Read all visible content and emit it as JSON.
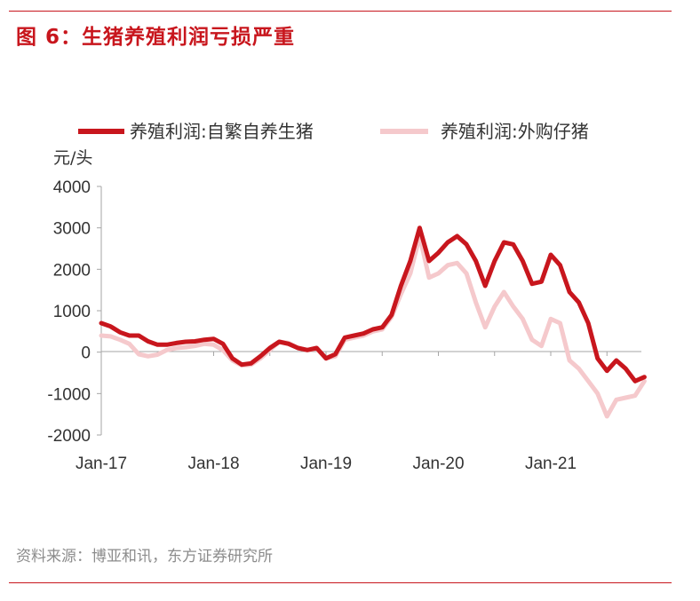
{
  "figure": {
    "title": "图 6：生猪养殖利润亏损严重",
    "source": "资料来源：博亚和讯，东方证券研究所"
  },
  "colors": {
    "accent": "#c8161d",
    "series_own": "#c8161d",
    "series_bought": "#f5c9cc"
  },
  "chart_data": {
    "type": "line",
    "ylabel": "元/头",
    "ylim": [
      -2000,
      4000
    ],
    "yticks": [
      4000,
      3000,
      2000,
      1000,
      0,
      -1000,
      -2000
    ],
    "xticks": [
      "Jan-17",
      "Jan-18",
      "Jan-19",
      "Jan-20",
      "Jan-21"
    ],
    "x_unit_note": "",
    "legend_position": "top",
    "series": [
      {
        "name": "养殖利润:自繁自养生猪",
        "points": [
          [
            "2017-01",
            700
          ],
          [
            "2017-02",
            620
          ],
          [
            "2017-03",
            480
          ],
          [
            "2017-04",
            400
          ],
          [
            "2017-05",
            400
          ],
          [
            "2017-06",
            260
          ],
          [
            "2017-07",
            180
          ],
          [
            "2017-08",
            180
          ],
          [
            "2017-09",
            220
          ],
          [
            "2017-10",
            250
          ],
          [
            "2017-11",
            260
          ],
          [
            "2017-12",
            300
          ],
          [
            "2018-01",
            320
          ],
          [
            "2018-02",
            200
          ],
          [
            "2018-03",
            -150
          ],
          [
            "2018-04",
            -300
          ],
          [
            "2018-05",
            -270
          ],
          [
            "2018-06",
            -100
          ],
          [
            "2018-07",
            100
          ],
          [
            "2018-08",
            250
          ],
          [
            "2018-09",
            200
          ],
          [
            "2018-10",
            100
          ],
          [
            "2018-11",
            50
          ],
          [
            "2018-12",
            100
          ],
          [
            "2019-01",
            -150
          ],
          [
            "2019-02",
            -50
          ],
          [
            "2019-03",
            350
          ],
          [
            "2019-04",
            400
          ],
          [
            "2019-05",
            450
          ],
          [
            "2019-06",
            550
          ],
          [
            "2019-07",
            600
          ],
          [
            "2019-08",
            900
          ],
          [
            "2019-09",
            1600
          ],
          [
            "2019-10",
            2200
          ],
          [
            "2019-11",
            3000
          ],
          [
            "2019-12",
            2200
          ],
          [
            "2020-01",
            2400
          ],
          [
            "2020-02",
            2650
          ],
          [
            "2020-03",
            2800
          ],
          [
            "2020-04",
            2600
          ],
          [
            "2020-05",
            2200
          ],
          [
            "2020-06",
            1600
          ],
          [
            "2020-07",
            2200
          ],
          [
            "2020-08",
            2650
          ],
          [
            "2020-09",
            2600
          ],
          [
            "2020-10",
            2200
          ],
          [
            "2020-11",
            1650
          ],
          [
            "2020-12",
            1700
          ],
          [
            "2021-01",
            2350
          ],
          [
            "2021-02",
            2100
          ],
          [
            "2021-03",
            1450
          ],
          [
            "2021-04",
            1200
          ],
          [
            "2021-05",
            700
          ],
          [
            "2021-06",
            -150
          ],
          [
            "2021-07",
            -450
          ],
          [
            "2021-08",
            -200
          ],
          [
            "2021-09",
            -400
          ],
          [
            "2021-10",
            -700
          ],
          [
            "2021-11",
            -600
          ]
        ]
      },
      {
        "name": "养殖利润:外购仔猪",
        "points": [
          [
            "2017-01",
            400
          ],
          [
            "2017-02",
            380
          ],
          [
            "2017-03",
            300
          ],
          [
            "2017-04",
            200
          ],
          [
            "2017-05",
            -50
          ],
          [
            "2017-06",
            -100
          ],
          [
            "2017-07",
            -60
          ],
          [
            "2017-08",
            50
          ],
          [
            "2017-09",
            100
          ],
          [
            "2017-10",
            120
          ],
          [
            "2017-11",
            150
          ],
          [
            "2017-12",
            200
          ],
          [
            "2018-01",
            180
          ],
          [
            "2018-02",
            50
          ],
          [
            "2018-03",
            -200
          ],
          [
            "2018-04",
            -320
          ],
          [
            "2018-05",
            -300
          ],
          [
            "2018-06",
            -150
          ],
          [
            "2018-07",
            50
          ],
          [
            "2018-08",
            250
          ],
          [
            "2018-09",
            220
          ],
          [
            "2018-10",
            100
          ],
          [
            "2018-11",
            50
          ],
          [
            "2018-12",
            80
          ],
          [
            "2019-01",
            -150
          ],
          [
            "2019-02",
            -100
          ],
          [
            "2019-03",
            300
          ],
          [
            "2019-04",
            350
          ],
          [
            "2019-05",
            400
          ],
          [
            "2019-06",
            500
          ],
          [
            "2019-07",
            550
          ],
          [
            "2019-08",
            850
          ],
          [
            "2019-09",
            1400
          ],
          [
            "2019-10",
            1900
          ],
          [
            "2019-11",
            2800
          ],
          [
            "2019-12",
            1800
          ],
          [
            "2020-01",
            1900
          ],
          [
            "2020-02",
            2100
          ],
          [
            "2020-03",
            2150
          ],
          [
            "2020-04",
            1900
          ],
          [
            "2020-05",
            1200
          ],
          [
            "2020-06",
            600
          ],
          [
            "2020-07",
            1100
          ],
          [
            "2020-08",
            1450
          ],
          [
            "2020-09",
            1100
          ],
          [
            "2020-10",
            800
          ],
          [
            "2020-11",
            300
          ],
          [
            "2020-12",
            150
          ],
          [
            "2021-01",
            800
          ],
          [
            "2021-02",
            700
          ],
          [
            "2021-03",
            -200
          ],
          [
            "2021-04",
            -400
          ],
          [
            "2021-05",
            -700
          ],
          [
            "2021-06",
            -1000
          ],
          [
            "2021-07",
            -1550
          ],
          [
            "2021-08",
            -1150
          ],
          [
            "2021-09",
            -1100
          ],
          [
            "2021-10",
            -1050
          ],
          [
            "2021-11",
            -700
          ]
        ]
      }
    ]
  }
}
